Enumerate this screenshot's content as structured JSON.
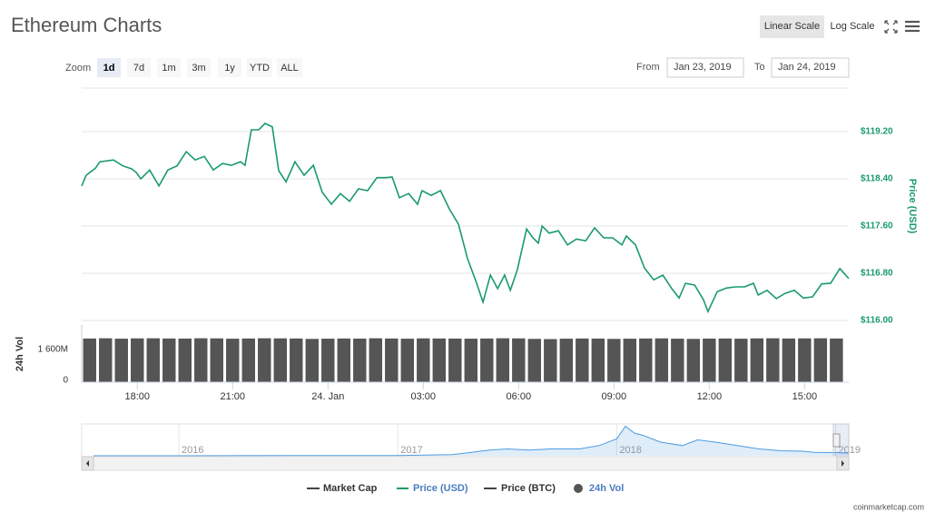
{
  "ui": {
    "title": "Ethereum Charts",
    "scale_buttons": [
      "Linear Scale",
      "Log Scale"
    ],
    "active_scale": 0,
    "zoom_label": "Zoom",
    "zoom_buttons": [
      "1d",
      "7d",
      "1m",
      "3m",
      "1y",
      "YTD",
      "ALL"
    ],
    "active_zoom": 0,
    "from_label": "From",
    "from_date": "Jan 23, 2019",
    "to_label": "To",
    "to_date": "Jan 24, 2019",
    "legend": [
      {
        "name": "Market Cap",
        "color": "#434348"
      },
      {
        "name": "Price (BTC)",
        "color": "#434348"
      }
    ],
    "credit": "coinmarketcap.com"
  },
  "chart_data": [
    {
      "type": "line",
      "y_axis_label": "Price (USD)",
      "xlim": [
        16.25,
        40.39
      ],
      "xticks": [
        {
          "value": 18,
          "label": "18:00"
        },
        {
          "value": 21,
          "label": "21:00"
        },
        {
          "value": 24,
          "label": "24. Jan"
        },
        {
          "value": 27,
          "label": "03:00"
        },
        {
          "value": 30,
          "label": "06:00"
        },
        {
          "value": 33,
          "label": "09:00"
        },
        {
          "value": 36,
          "label": "12:00"
        },
        {
          "value": 39,
          "label": "15:00"
        }
      ],
      "ylim": [
        116,
        120
      ],
      "yticks": [
        {
          "value": 116,
          "label": "$116.00"
        },
        {
          "value": 116.8,
          "label": "$116.80"
        },
        {
          "value": 117.6,
          "label": "$117.60"
        },
        {
          "value": 118.4,
          "label": "$118.40"
        },
        {
          "value": 119.2,
          "label": "$119.20"
        }
      ],
      "grid": true,
      "series": [
        {
          "name": "Price (USD)",
          "color": "#1a9a6c",
          "x": [
            16.25,
            16.39,
            16.68,
            16.82,
            17.25,
            17.54,
            17.82,
            17.96,
            18.11,
            18.39,
            18.68,
            18.96,
            19.25,
            19.54,
            19.82,
            20.11,
            20.39,
            20.68,
            20.96,
            21.25,
            21.39,
            21.59,
            21.82,
            22.02,
            22.25,
            22.45,
            22.68,
            22.96,
            23.25,
            23.54,
            23.82,
            24.11,
            24.39,
            24.68,
            24.96,
            25.25,
            25.54,
            25.82,
            26.02,
            26.25,
            26.54,
            26.82,
            26.96,
            27.25,
            27.54,
            27.82,
            28.11,
            28.39,
            28.68,
            28.88,
            29.11,
            29.34,
            29.56,
            29.74,
            29.96,
            30.25,
            30.45,
            30.62,
            30.74,
            30.96,
            31.25,
            31.54,
            31.82,
            32.11,
            32.39,
            32.68,
            32.96,
            33.25,
            33.39,
            33.68,
            33.96,
            34.25,
            34.54,
            34.82,
            35.05,
            35.25,
            35.54,
            35.82,
            35.96,
            36.25,
            36.54,
            36.82,
            37.11,
            37.39,
            37.54,
            37.82,
            38.11,
            38.39,
            38.68,
            38.96,
            39.25,
            39.54,
            39.82,
            40.11,
            40.39
          ],
          "values": [
            118.28,
            118.46,
            118.58,
            118.69,
            118.72,
            118.62,
            118.57,
            118.51,
            118.4,
            118.55,
            118.28,
            118.55,
            118.62,
            118.86,
            118.72,
            118.78,
            118.55,
            118.66,
            118.63,
            118.69,
            118.63,
            119.23,
            119.23,
            119.34,
            119.28,
            118.54,
            118.35,
            118.69,
            118.46,
            118.63,
            118.17,
            117.97,
            118.15,
            118.02,
            118.23,
            118.2,
            118.42,
            118.42,
            118.43,
            118.08,
            118.15,
            117.97,
            118.2,
            118.12,
            118.2,
            117.89,
            117.63,
            117.05,
            116.63,
            116.31,
            116.77,
            116.54,
            116.77,
            116.51,
            116.86,
            117.55,
            117.4,
            117.31,
            117.6,
            117.48,
            117.52,
            117.28,
            117.38,
            117.35,
            117.57,
            117.4,
            117.4,
            117.28,
            117.43,
            117.28,
            116.89,
            116.69,
            116.77,
            116.54,
            116.38,
            116.63,
            116.6,
            116.35,
            116.15,
            116.49,
            116.55,
            116.57,
            116.57,
            116.63,
            116.43,
            116.51,
            116.37,
            116.46,
            116.51,
            116.38,
            116.4,
            116.62,
            116.63,
            116.88,
            116.71
          ]
        }
      ]
    },
    {
      "type": "bar",
      "y_axis_label": "24h Vol",
      "ylim": [
        0,
        2800
      ],
      "yticks": [
        0,
        {
          "value": 1600,
          "label": "1 600M"
        }
      ],
      "series": [
        {
          "name": "24h Vol",
          "color": "#555555",
          "x": [
            16.5,
            17,
            17.5,
            18,
            18.5,
            19,
            19.5,
            20,
            20.5,
            21,
            21.5,
            22,
            22.5,
            23,
            23.5,
            24,
            24.5,
            25,
            25.5,
            26,
            26.5,
            27,
            27.5,
            28,
            28.5,
            29,
            29.5,
            30,
            30.5,
            31,
            31.5,
            32,
            32.5,
            33,
            33.5,
            34,
            34.5,
            35,
            35.5,
            36,
            36.5,
            37,
            37.5,
            38,
            38.5,
            39,
            39.5,
            40
          ],
          "values": [
            2140,
            2150,
            2130,
            2145,
            2150,
            2140,
            2135,
            2150,
            2145,
            2130,
            2140,
            2150,
            2145,
            2140,
            2120,
            2130,
            2140,
            2135,
            2150,
            2140,
            2130,
            2145,
            2140,
            2135,
            2130,
            2140,
            2150,
            2145,
            2120,
            2110,
            2130,
            2140,
            2135,
            2120,
            2130,
            2140,
            2145,
            2130,
            2120,
            2135,
            2140,
            2130,
            2145,
            2150,
            2140,
            2145,
            2150,
            2140
          ]
        }
      ]
    },
    {
      "type": "area",
      "xlim": [
        2015.61,
        2019.06
      ],
      "xticks": [
        2016,
        2017,
        2018,
        2019
      ],
      "ylim": [
        0,
        1400
      ],
      "series": [
        {
          "color": "#4f9be0",
          "x": [
            2015.61,
            2016.0,
            2016.5,
            2017.0,
            2017.25,
            2017.42,
            2017.5,
            2017.6,
            2017.7,
            2017.83,
            2017.92,
            2018.0,
            2018.04,
            2018.08,
            2018.12,
            2018.2,
            2018.3,
            2018.37,
            2018.45,
            2018.55,
            2018.65,
            2018.75,
            2018.85,
            2018.9,
            2019.0,
            2019.06
          ],
          "values": [
            1,
            1,
            12,
            8,
            50,
            250,
            300,
            250,
            300,
            300,
            450,
            750,
            1300,
            1000,
            900,
            600,
            450,
            700,
            600,
            450,
            300,
            220,
            200,
            150,
            140,
            117
          ]
        }
      ]
    }
  ]
}
